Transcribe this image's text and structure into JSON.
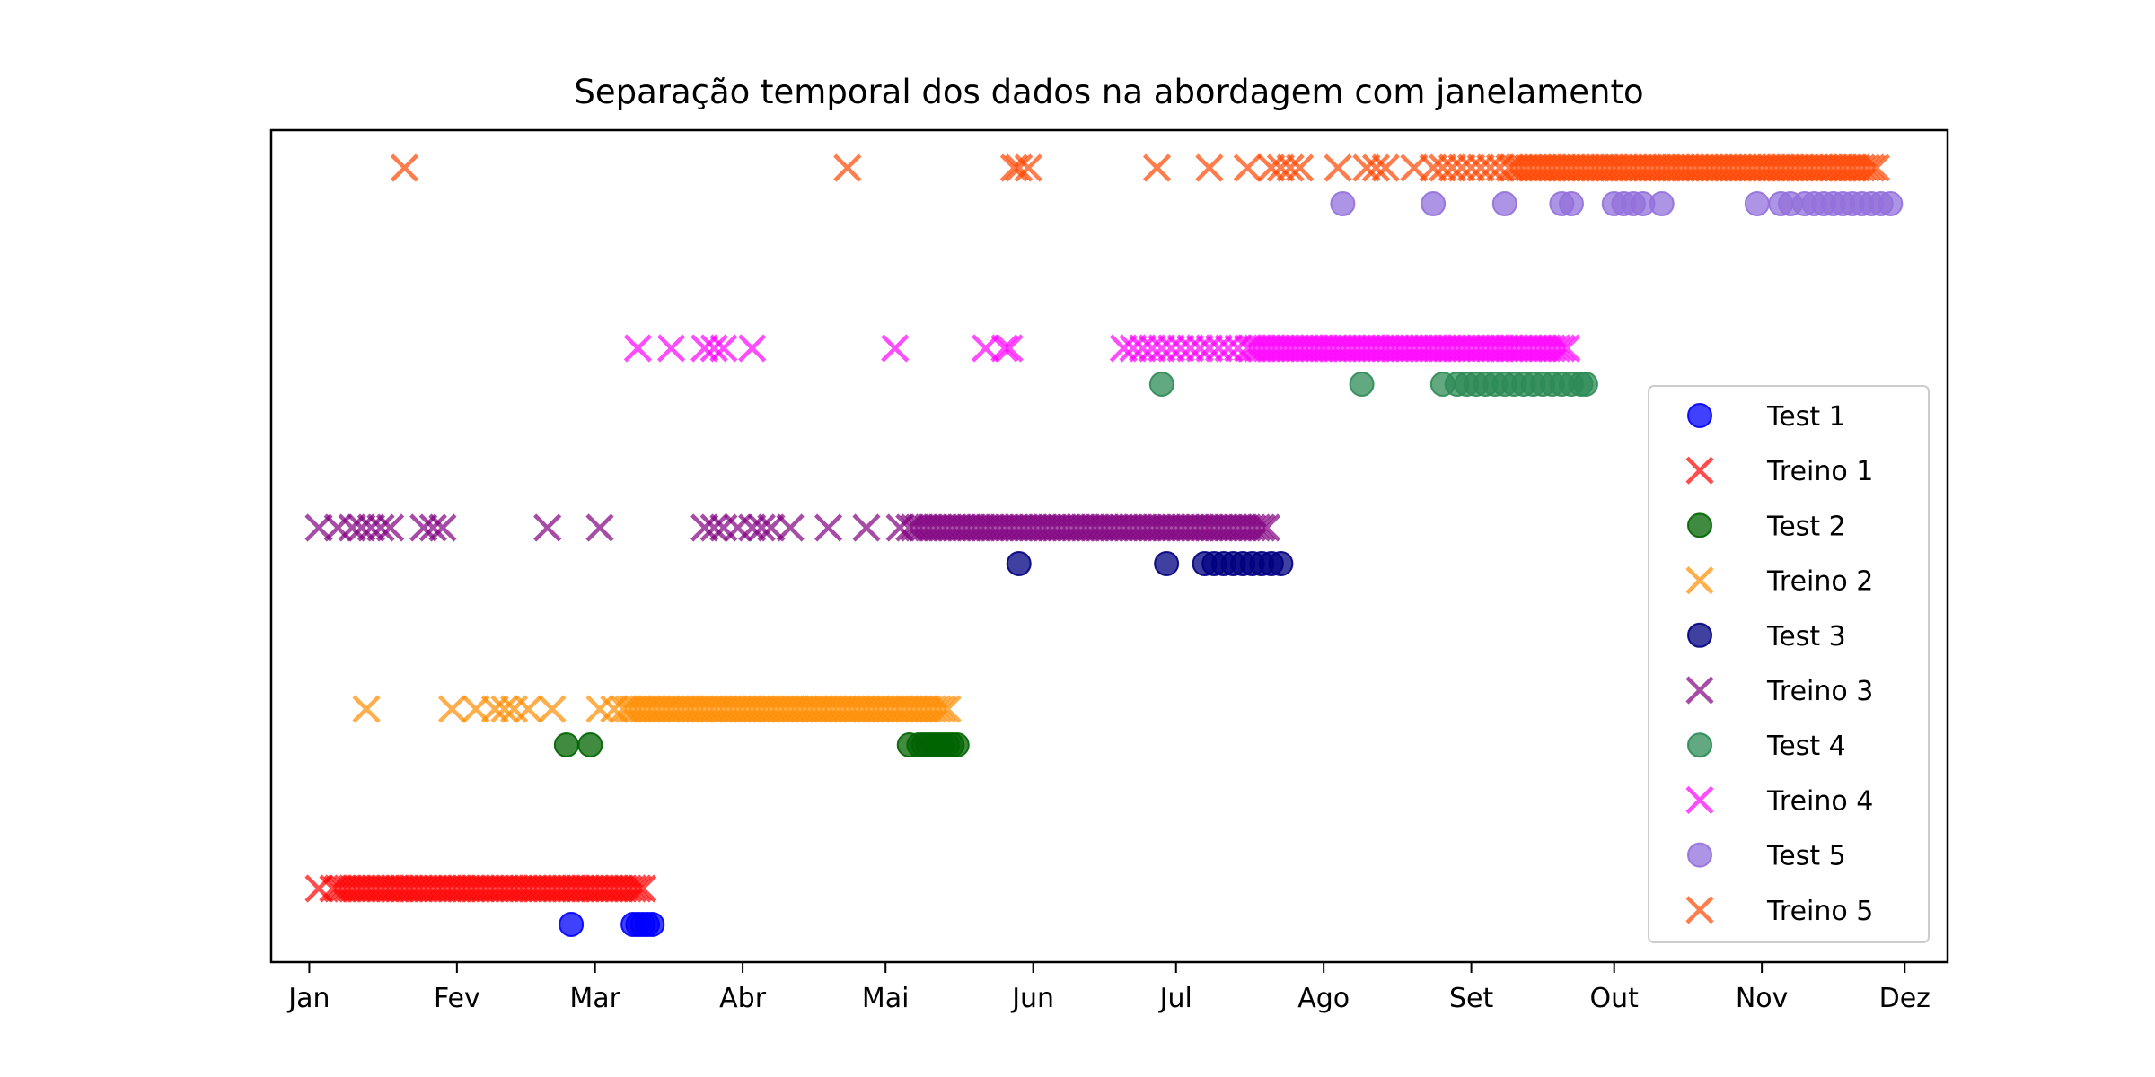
{
  "chart_data": {
    "type": "scatter",
    "title": "Separação temporal dos dados na abordagem com janelamento",
    "xlabel": "",
    "ylabel": "",
    "x_axis": "date",
    "xlim": [
      "2023-12-24",
      "2024-12-10"
    ],
    "x_ticks": [
      {
        "label": "Jan",
        "date": "2024-01-01"
      },
      {
        "label": "Fev",
        "date": "2024-02-01"
      },
      {
        "label": "Mar",
        "date": "2024-03-01"
      },
      {
        "label": "Abr",
        "date": "2024-04-01"
      },
      {
        "label": "Mai",
        "date": "2024-05-01"
      },
      {
        "label": "Jun",
        "date": "2024-06-01"
      },
      {
        "label": "Jul",
        "date": "2024-07-01"
      },
      {
        "label": "Ago",
        "date": "2024-08-01"
      },
      {
        "label": "Set",
        "date": "2024-09-01"
      },
      {
        "label": "Out",
        "date": "2024-10-01"
      },
      {
        "label": "Nov",
        "date": "2024-11-01"
      },
      {
        "label": "Dez",
        "date": "2024-12-01"
      }
    ],
    "y_ticks_visible": false,
    "grid": false,
    "legend_position": "right",
    "series": [
      {
        "name": "Test 1",
        "marker": "o",
        "color": "#0000ff",
        "alpha": 0.75,
        "row": 1,
        "offset": "low",
        "dates": [
          "2024-02-25",
          "2024-03-09",
          "2024-03-10",
          "2024-03-11",
          "2024-03-12",
          "2024-03-13"
        ]
      },
      {
        "name": "Treino 1",
        "marker": "x",
        "color": "#ff0000",
        "alpha": 0.7,
        "row": 1,
        "offset": "high",
        "dates": [
          "2024-01-03"
        ],
        "dense_ranges": [
          [
            "2024-01-06",
            "2024-03-11",
            1
          ]
        ]
      },
      {
        "name": "Test 2",
        "marker": "o",
        "color": "#006400",
        "alpha": 0.75,
        "row": 2,
        "offset": "low",
        "dates": [
          "2024-02-24",
          "2024-02-29",
          "2024-05-06",
          "2024-05-08",
          "2024-05-09",
          "2024-05-10",
          "2024-05-11",
          "2024-05-12",
          "2024-05-13",
          "2024-05-14",
          "2024-05-15",
          "2024-05-16"
        ]
      },
      {
        "name": "Treino 2",
        "marker": "x",
        "color": "#ff8c00",
        "alpha": 0.7,
        "row": 2,
        "offset": "high",
        "dates": [
          "2024-01-13",
          "2024-01-31",
          "2024-02-05",
          "2024-02-09",
          "2024-02-11",
          "2024-02-13",
          "2024-02-16",
          "2024-02-21",
          "2024-03-02",
          "2024-03-05"
        ],
        "dense_ranges": [
          [
            "2024-03-07",
            "2024-05-14",
            1
          ]
        ]
      },
      {
        "name": "Test 3",
        "marker": "o",
        "color": "#000080",
        "alpha": 0.75,
        "row": 3,
        "offset": "low",
        "dates": [
          "2024-05-29",
          "2024-06-29",
          "2024-07-07",
          "2024-07-09",
          "2024-07-11",
          "2024-07-13",
          "2024-07-15",
          "2024-07-17",
          "2024-07-19",
          "2024-07-21",
          "2024-07-23"
        ]
      },
      {
        "name": "Treino 3",
        "marker": "x",
        "color": "#800080",
        "alpha": 0.7,
        "row": 3,
        "offset": "high",
        "dates": [
          "2024-01-03",
          "2024-01-07",
          "2024-01-10",
          "2024-01-12",
          "2024-01-14",
          "2024-01-16",
          "2024-01-18",
          "2024-01-25",
          "2024-01-27",
          "2024-01-29",
          "2024-02-20",
          "2024-03-02",
          "2024-03-24",
          "2024-03-26",
          "2024-03-28",
          "2024-03-31",
          "2024-04-03",
          "2024-04-05",
          "2024-04-07",
          "2024-04-11",
          "2024-04-19",
          "2024-04-27",
          "2024-05-04"
        ],
        "dense_ranges": [
          [
            "2024-05-06",
            "2024-07-20",
            1
          ]
        ]
      },
      {
        "name": "Test 4",
        "marker": "o",
        "color": "#2e8b57",
        "alpha": 0.75,
        "row": 4,
        "offset": "low",
        "dates": [
          "2024-06-28",
          "2024-08-09",
          "2024-08-26",
          "2024-08-29",
          "2024-08-31",
          "2024-09-02",
          "2024-09-04",
          "2024-09-06",
          "2024-09-08",
          "2024-09-10",
          "2024-09-12",
          "2024-09-14",
          "2024-09-16",
          "2024-09-18",
          "2024-09-20",
          "2024-09-22",
          "2024-09-24",
          "2024-09-25"
        ]
      },
      {
        "name": "Treino 4",
        "marker": "x",
        "color": "#ff00ff",
        "alpha": 0.7,
        "row": 4,
        "offset": "high",
        "dates": [
          "2024-03-10",
          "2024-03-17",
          "2024-03-24",
          "2024-03-26",
          "2024-03-28",
          "2024-04-03",
          "2024-05-03",
          "2024-05-22",
          "2024-05-26",
          "2024-05-27",
          "2024-06-20",
          "2024-06-22",
          "2024-06-24",
          "2024-06-26",
          "2024-06-28",
          "2024-06-30",
          "2024-07-02",
          "2024-07-04",
          "2024-07-06",
          "2024-07-08",
          "2024-07-10",
          "2024-07-12",
          "2024-07-14",
          "2024-07-16"
        ],
        "dense_ranges": [
          [
            "2024-07-17",
            "2024-09-21",
            1
          ]
        ]
      },
      {
        "name": "Test 5",
        "marker": "o",
        "color": "#9370db",
        "alpha": 0.75,
        "row": 5,
        "offset": "low",
        "dates": [
          "2024-08-05",
          "2024-08-24",
          "2024-09-08",
          "2024-09-20",
          "2024-09-22",
          "2024-10-01",
          "2024-10-03",
          "2024-10-05",
          "2024-10-07",
          "2024-10-11",
          "2024-10-31",
          "2024-11-05",
          "2024-11-07",
          "2024-11-10",
          "2024-11-12",
          "2024-11-14",
          "2024-11-16",
          "2024-11-18",
          "2024-11-20",
          "2024-11-22",
          "2024-11-24",
          "2024-11-26",
          "2024-11-28"
        ]
      },
      {
        "name": "Treino 5",
        "marker": "x",
        "color": "#ff4500",
        "alpha": 0.7,
        "row": 5,
        "offset": "high",
        "dates": [
          "2024-01-21",
          "2024-04-23",
          "2024-05-28",
          "2024-05-29",
          "2024-05-31",
          "2024-06-27",
          "2024-07-08",
          "2024-07-16",
          "2024-07-21",
          "2024-07-23",
          "2024-07-25",
          "2024-07-27",
          "2024-08-04",
          "2024-08-10",
          "2024-08-12",
          "2024-08-14",
          "2024-08-20",
          "2024-08-24",
          "2024-08-26",
          "2024-08-28",
          "2024-08-30",
          "2024-09-01",
          "2024-09-03",
          "2024-09-05",
          "2024-09-07"
        ],
        "dense_ranges": [
          [
            "2024-09-09",
            "2024-11-25",
            1
          ]
        ]
      }
    ]
  }
}
